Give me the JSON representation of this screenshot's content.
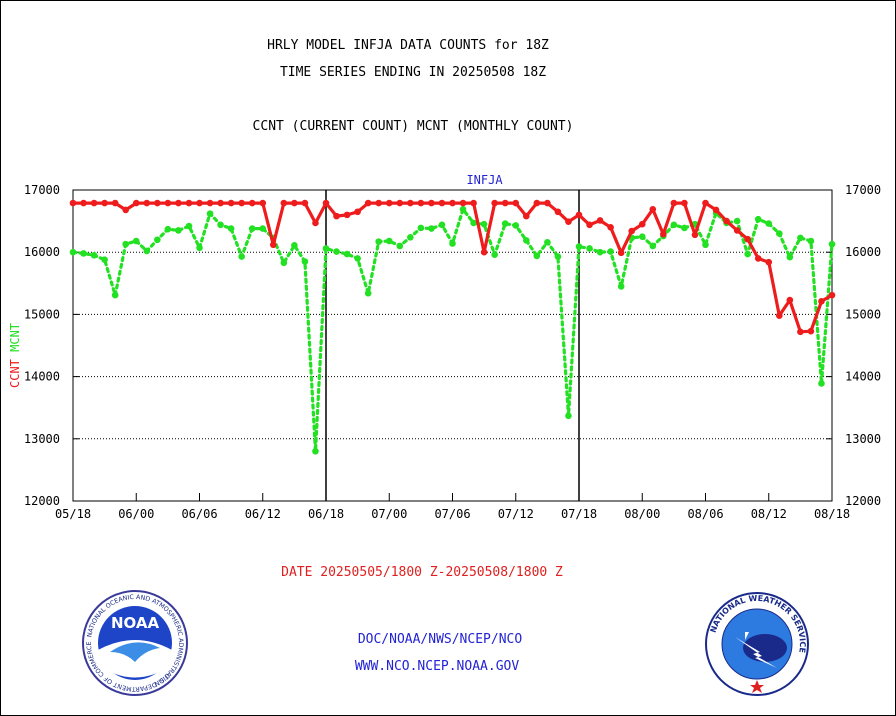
{
  "header": {
    "title_line1": "HRLY MODEL INFJA DATA COUNTS for 18Z",
    "title_line2": "TIME SERIES ENDING IN 20250508 18Z",
    "subtitle": "CCNT (CURRENT COUNT) MCNT (MONTHLY COUNT)"
  },
  "footer": {
    "date_range": "DATE 20250505/1800 Z-20250508/1800 Z",
    "org_line": "DOC/NOAA/NWS/NCEP/NCO",
    "url_line": "WWW.NCO.NCEP.NOAA.GOV"
  },
  "logos": {
    "noaa_text": "NOAA",
    "noaa_ring": "NATIONAL OCEANIC AND ATMOSPHERIC ADMINISTRATION",
    "noaa_ring_bottom": "U.S. DEPARTMENT OF COMMERCE",
    "nws_ring": "NATIONAL WEATHER SERVICE"
  },
  "colors": {
    "ccnt": "#ee1c1c",
    "mcnt": "#22e022",
    "label_blue": "#2323d6",
    "date_red": "#e02020"
  },
  "chart_data": {
    "type": "line",
    "title": "INFJA",
    "ylabel_left_ccnt": "CCNT",
    "ylabel_left_mcnt": "MCNT",
    "ylim": [
      12000,
      17000
    ],
    "yticks": [
      12000,
      13000,
      14000,
      15000,
      16000,
      17000
    ],
    "ytick_labels": [
      "12000",
      "13000",
      "14000",
      "15000",
      "16000",
      "17000"
    ],
    "xlim": [
      0,
      72
    ],
    "xtick_hours": [
      0,
      6,
      12,
      18,
      24,
      30,
      36,
      42,
      48,
      54,
      60,
      66,
      72
    ],
    "xtick_labels": [
      "05/18",
      "06/00",
      "06/06",
      "06/12",
      "06/18",
      "07/00",
      "07/06",
      "07/12",
      "07/18",
      "08/00",
      "08/06",
      "08/12",
      "08/18"
    ],
    "day_dividers": [
      24,
      48
    ],
    "grid_y": true,
    "series": [
      {
        "name": "CCNT",
        "x": [
          0,
          1,
          2,
          3,
          4,
          5,
          6,
          7,
          8,
          9,
          10,
          11,
          12,
          13,
          14,
          15,
          16,
          17,
          18,
          19,
          20,
          21,
          22,
          23,
          24,
          25,
          26,
          27,
          28,
          29,
          30,
          31,
          32,
          33,
          34,
          35,
          36,
          37,
          38,
          39,
          40,
          41,
          42,
          43,
          44,
          45,
          46,
          47,
          48,
          49,
          50,
          51,
          52,
          53,
          54,
          55,
          56,
          57,
          58,
          59,
          60,
          61,
          62,
          63,
          64,
          65,
          66,
          67,
          68,
          69,
          70,
          71,
          72
        ],
        "values": [
          16790,
          16790,
          16790,
          16790,
          16790,
          16680,
          16790,
          16790,
          16790,
          16790,
          16790,
          16790,
          16790,
          16790,
          16790,
          16790,
          16790,
          16790,
          16790,
          16120,
          16790,
          16790,
          16790,
          16470,
          16790,
          16580,
          16600,
          16650,
          16790,
          16790,
          16790,
          16790,
          16790,
          16790,
          16790,
          16790,
          16790,
          16790,
          16790,
          16000,
          16790,
          16790,
          16790,
          16580,
          16790,
          16790,
          16650,
          16490,
          16600,
          16440,
          16510,
          16400,
          15990,
          16340,
          16450,
          16690,
          16290,
          16790,
          16790,
          16280,
          16790,
          16680,
          16500,
          16350,
          16210,
          15900,
          15840,
          14980,
          15230,
          14720,
          14730,
          15210,
          15310
        ]
      },
      {
        "name": "MCNT",
        "x": [
          0,
          1,
          2,
          3,
          4,
          5,
          6,
          7,
          8,
          9,
          10,
          11,
          12,
          13,
          14,
          15,
          16,
          17,
          18,
          19,
          20,
          21,
          22,
          23,
          24,
          25,
          26,
          27,
          28,
          29,
          30,
          31,
          32,
          33,
          34,
          35,
          36,
          37,
          38,
          39,
          40,
          41,
          42,
          43,
          44,
          45,
          46,
          47,
          48,
          49,
          50,
          51,
          52,
          53,
          54,
          55,
          56,
          57,
          58,
          59,
          60,
          61,
          62,
          63,
          64,
          65,
          66,
          67,
          68,
          69,
          70,
          71,
          72
        ],
        "values": [
          16000,
          15980,
          15950,
          15880,
          15310,
          16130,
          16180,
          16020,
          16200,
          16370,
          16350,
          16420,
          16070,
          16620,
          16440,
          16380,
          15930,
          16380,
          16380,
          16230,
          15830,
          16110,
          15850,
          12800,
          16060,
          16010,
          15970,
          15900,
          15340,
          16170,
          16180,
          16100,
          16240,
          16390,
          16380,
          16440,
          16140,
          16690,
          16470,
          16450,
          15960,
          16460,
          16430,
          16190,
          15940,
          16160,
          15930,
          13370,
          16090,
          16060,
          16000,
          16010,
          15450,
          16230,
          16250,
          16100,
          16260,
          16440,
          16390,
          16450,
          16120,
          16630,
          16470,
          16500,
          15970,
          16530,
          16460,
          16300,
          15920,
          16230,
          16180,
          13890,
          16130
        ]
      }
    ]
  }
}
